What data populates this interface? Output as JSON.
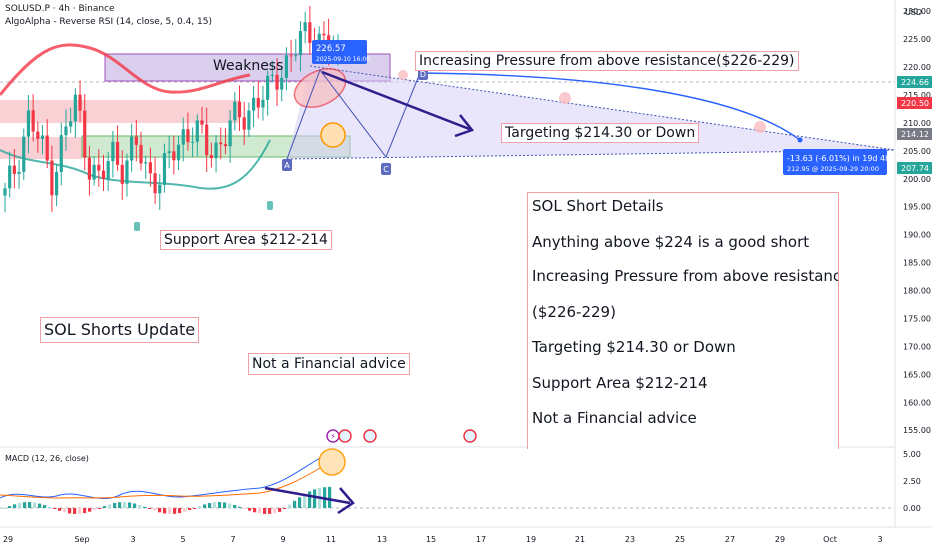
{
  "header": {
    "symbol": "SOLUSD.P · 4h · Binance",
    "indicator": "AlgoAlpha - Reverse RSI (14, close, 5, 0.4, 15)",
    "currency": "USD",
    "macd": "MACD (12, 26, close)"
  },
  "price_axis": {
    "ticks": [
      "230.00",
      "225.00",
      "220.00",
      "215.00",
      "210.00",
      "205.00",
      "200.00",
      "195.00",
      "190.00",
      "185.00",
      "180.00",
      "175.00",
      "170.00",
      "165.00",
      "160.00",
      "155.00"
    ],
    "tags": [
      {
        "text": "224.66",
        "color": "#26a69a"
      },
      {
        "text": "220.50",
        "color": "#f23645"
      },
      {
        "text": "214.12",
        "color": "#787b86"
      },
      {
        "text": "207.74",
        "color": "#26a69a"
      }
    ]
  },
  "macd_axis": {
    "ticks": [
      "5.00",
      "2.50",
      "0.00"
    ]
  },
  "time_axis": {
    "ticks": [
      "29",
      "Sep",
      "3",
      "5",
      "7",
      "9",
      "11",
      "13",
      "15",
      "17",
      "19",
      "21",
      "23",
      "25",
      "27",
      "29",
      "Oct",
      "3"
    ]
  },
  "chart_data": {
    "type": "candlestick",
    "symbol": "SOLUSD.P",
    "timeframe": "4h",
    "y_range": [
      152,
      232
    ],
    "close_path": [
      197,
      203,
      211,
      206,
      200,
      208,
      214,
      203,
      199,
      205,
      202,
      206,
      201,
      200,
      204,
      208,
      209,
      205,
      206,
      210,
      211,
      214,
      215,
      219,
      222,
      225,
      226.5,
      224,
      222
    ],
    "price_axis_ticks": [
      230,
      225,
      220,
      215,
      210,
      205,
      200,
      195,
      190,
      185,
      180,
      175,
      170,
      165,
      160,
      155
    ],
    "markers": {
      "high": {
        "price": "226.57",
        "date": "2025-09-10 16:00"
      }
    },
    "measure": {
      "change": "-13.63 (-6.01%) in 19d 4h",
      "target": "212.95 @ 2025-09-29 20:00"
    },
    "point_labels": [
      "A",
      "C",
      "D"
    ]
  },
  "annotations": {
    "weakness": "Weakness",
    "pressure": "Increasing Pressure from above resistance($226-229)",
    "targeting": "Targeting $214.30 or Down",
    "support": "Support Area $212-214",
    "update": "SOL Shorts Update",
    "advice": "Not a Financial advice"
  },
  "details": {
    "lines": [
      "SOL Short Details",
      "Anything above $224 is a good short",
      "Increasing Pressure from above resistance",
      "($226-229)",
      "Targeting $214.30 or Down",
      "Support Area $212-214",
      "Not a Financial advice"
    ]
  },
  "colors": {
    "up": "#26a69a",
    "down": "#f23645",
    "violet": "#2e1e8c",
    "blue": "#2962ff"
  }
}
